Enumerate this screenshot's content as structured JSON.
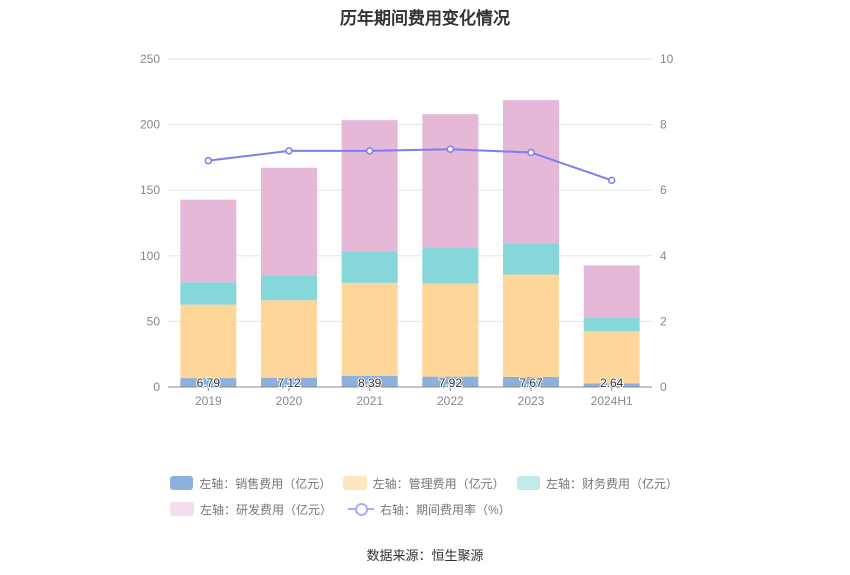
{
  "title": "历年期间费用变化情况",
  "source": "数据来源：恒生聚源",
  "legend": [
    {
      "label": "左轴：销售费用（亿元）",
      "color": "#8eb0dc",
      "kind": "bar"
    },
    {
      "label": "左轴：管理费用（亿元）",
      "color": "#ffe6bc",
      "kind": "bar"
    },
    {
      "label": "左轴：财务费用（亿元）",
      "color": "#c0eaea",
      "kind": "bar"
    },
    {
      "label": "左轴：研发费用（亿元）",
      "color": "#f2dcee",
      "kind": "bar"
    },
    {
      "label": "右轴：期间费用率（%）",
      "color": "#7b7ff0",
      "kind": "line"
    }
  ],
  "chart_data": {
    "type": "bar",
    "stacked": true,
    "categories": [
      "2019",
      "2020",
      "2021",
      "2022",
      "2023",
      "2024H1"
    ],
    "y_left": {
      "min": 0,
      "max": 250,
      "ticks": [
        0,
        50,
        100,
        150,
        200,
        250
      ]
    },
    "y_right": {
      "min": 0,
      "max": 10,
      "ticks": [
        0,
        2,
        4,
        6,
        8,
        10
      ]
    },
    "series": [
      {
        "name": "左轴：销售费用（亿元）",
        "axis": "left",
        "color": "#8eb0dc",
        "values": [
          6.79,
          7.12,
          8.39,
          7.92,
          7.67,
          2.64
        ],
        "show_labels": true
      },
      {
        "name": "左轴：管理费用（亿元）",
        "axis": "left",
        "color": "#ffd699",
        "values": [
          56,
          59,
          71,
          71,
          78,
          40
        ]
      },
      {
        "name": "左轴：财务费用（亿元）",
        "axis": "left",
        "color": "#86d7d9",
        "values": [
          17,
          19,
          24,
          27,
          24,
          10
        ]
      },
      {
        "name": "左轴：研发费用（亿元）",
        "axis": "left",
        "color": "#e6b8d8",
        "values": [
          63,
          82,
          100,
          102,
          109,
          40
        ]
      }
    ],
    "line_series": {
      "name": "右轴：期间费用率（%）",
      "axis": "right",
      "color": "#7b7ff0",
      "values": [
        6.9,
        7.2,
        7.2,
        7.25,
        7.15,
        6.3
      ]
    },
    "grid": true
  }
}
